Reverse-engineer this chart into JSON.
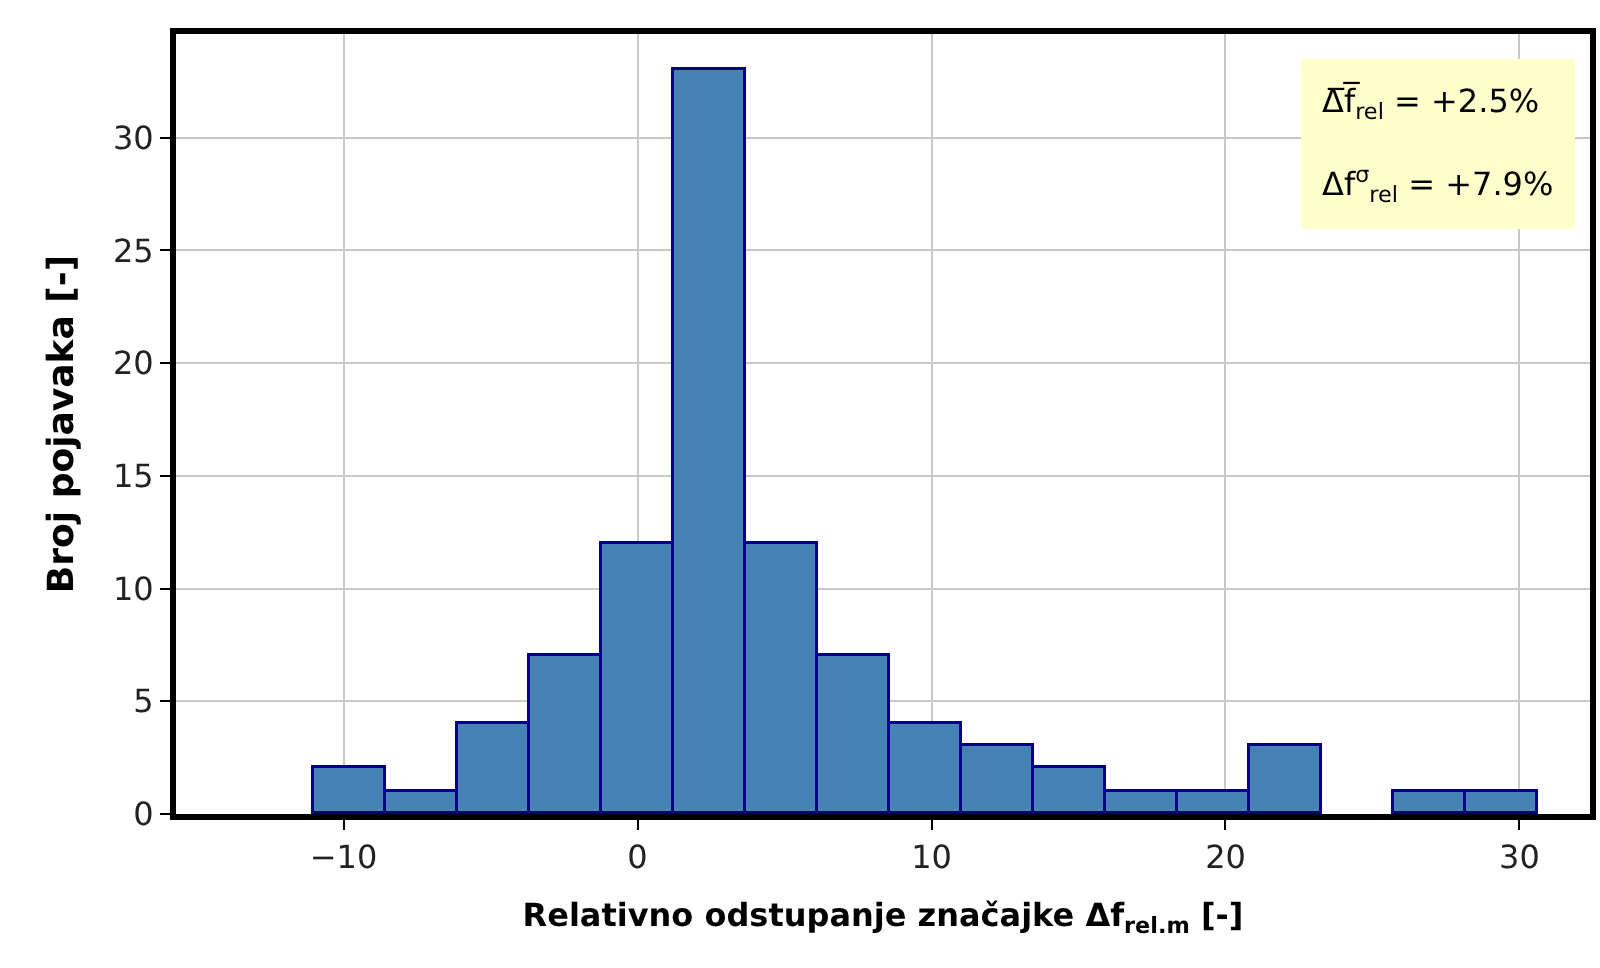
{
  "chart_data": {
    "type": "histogram",
    "xlabel": "Relativno odstupanje značajke Δf$_{rel.m}$ [-]",
    "ylabel": "Broj pojavaka [-]",
    "bins": [
      -11,
      -8.55,
      -6.1,
      -3.65,
      -1.2,
      1.25,
      3.7,
      6.15,
      8.6,
      11.05,
      13.5,
      15.95,
      18.4,
      20.85,
      23.3,
      25.75,
      28.2,
      30.65
    ],
    "values": [
      2,
      1,
      4,
      7,
      12,
      33,
      12,
      7,
      4,
      3,
      2,
      1,
      1,
      3,
      0,
      1,
      1
    ],
    "color": "#4682b4",
    "xlim": [
      -15.7,
      32.4
    ],
    "xticks": [
      -10,
      0,
      10,
      20,
      30
    ],
    "ylim": [
      0,
      34.6
    ],
    "yticks": [
      0,
      5,
      10,
      15,
      20,
      25,
      30
    ],
    "grid": true,
    "annotations": [
      "Δ̅f̅$_{rel}$ = +2.5%",
      "Δf$^{σ}$$_{rel}$ = +7.9%"
    ]
  }
}
